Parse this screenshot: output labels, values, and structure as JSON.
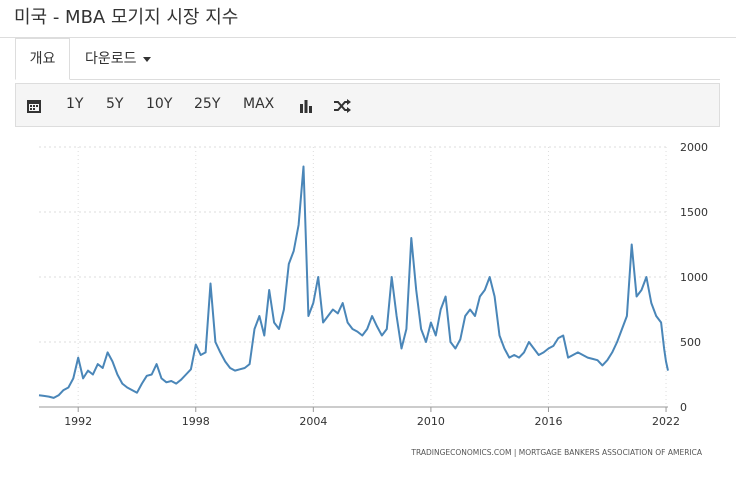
{
  "header": {
    "title": "미국 - MBA 모기지 시장 지수"
  },
  "tabs": [
    "개요",
    "다운로드"
  ],
  "toolbar": {
    "ranges": [
      "1Y",
      "5Y",
      "10Y",
      "25Y",
      "MAX"
    ]
  },
  "chart_data": {
    "type": "line",
    "source": "TRADINGECONOMICS.COM  |  MORTGAGE BANKERS ASSOCIATION OF AMERICA",
    "xlim": [
      1990,
      2022.1
    ],
    "xticks": [
      1992,
      1998,
      2004,
      2010,
      2016,
      2022
    ],
    "ylim": [
      0,
      2000
    ],
    "yticks": [
      0,
      500,
      1000,
      1500,
      2000
    ],
    "grid": true,
    "series": [
      {
        "color": "#4a86b8",
        "x": [
          1990,
          1990.25,
          1990.5,
          1990.75,
          1991,
          1991.25,
          1991.5,
          1991.75,
          1992,
          1992.25,
          1992.5,
          1992.75,
          1993,
          1993.25,
          1993.5,
          1993.75,
          1994,
          1994.25,
          1994.5,
          1994.75,
          1995,
          1995.25,
          1995.5,
          1995.75,
          1996,
          1996.25,
          1996.5,
          1996.75,
          1997,
          1997.25,
          1997.5,
          1997.75,
          1998,
          1998.25,
          1998.5,
          1998.75,
          1999,
          1999.25,
          1999.5,
          1999.75,
          2000,
          2000.25,
          2000.5,
          2000.75,
          2001,
          2001.25,
          2001.5,
          2001.75,
          2002,
          2002.25,
          2002.5,
          2002.75,
          2003,
          2003.25,
          2003.5,
          2003.75,
          2004,
          2004.25,
          2004.5,
          2004.75,
          2005,
          2005.25,
          2005.5,
          2005.75,
          2006,
          2006.25,
          2006.5,
          2006.75,
          2007,
          2007.25,
          2007.5,
          2007.75,
          2008,
          2008.25,
          2008.5,
          2008.75,
          2009,
          2009.25,
          2009.5,
          2009.75,
          2010,
          2010.25,
          2010.5,
          2010.75,
          2011,
          2011.25,
          2011.5,
          2011.75,
          2012,
          2012.25,
          2012.5,
          2012.75,
          2013,
          2013.25,
          2013.5,
          2013.75,
          2014,
          2014.25,
          2014.5,
          2014.75,
          2015,
          2015.25,
          2015.5,
          2015.75,
          2016,
          2016.25,
          2016.5,
          2016.75,
          2017,
          2017.25,
          2017.5,
          2017.75,
          2018,
          2018.25,
          2018.5,
          2018.75,
          2019,
          2019.25,
          2019.5,
          2019.75,
          2020,
          2020.25,
          2020.5,
          2020.75,
          2021,
          2021.25,
          2021.5,
          2021.75,
          2021.9,
          2022,
          2022.1
        ],
        "values": [
          90,
          85,
          80,
          70,
          90,
          130,
          150,
          220,
          380,
          220,
          280,
          250,
          330,
          300,
          420,
          350,
          250,
          180,
          150,
          130,
          110,
          180,
          240,
          250,
          330,
          220,
          190,
          200,
          180,
          210,
          250,
          290,
          480,
          400,
          420,
          950,
          500,
          420,
          350,
          300,
          280,
          290,
          300,
          330,
          600,
          700,
          550,
          900,
          650,
          600,
          750,
          1100,
          1200,
          1400,
          1850,
          700,
          800,
          1000,
          650,
          700,
          750,
          720,
          800,
          650,
          600,
          580,
          550,
          600,
          700,
          620,
          550,
          600,
          1000,
          700,
          450,
          600,
          1300,
          900,
          600,
          500,
          650,
          550,
          750,
          850,
          500,
          450,
          520,
          700,
          750,
          700,
          850,
          900,
          1000,
          850,
          550,
          450,
          380,
          400,
          380,
          420,
          500,
          450,
          400,
          420,
          450,
          470,
          530,
          550,
          380,
          400,
          420,
          400,
          380,
          370,
          360,
          320,
          360,
          420,
          500,
          600,
          700,
          1250,
          850,
          900,
          1000,
          800,
          700,
          650,
          450,
          350,
          280
        ]
      }
    ]
  }
}
